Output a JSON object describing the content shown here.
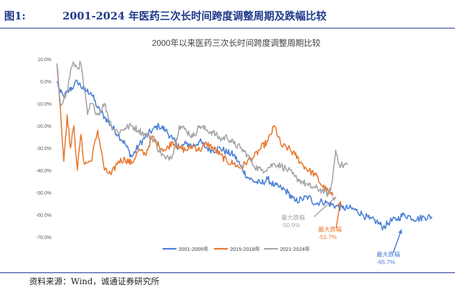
{
  "figure": {
    "label": "图1:",
    "title": "2001-2024 年医药三次长时间跨度调整周期及跌幅比较",
    "source": "资料来源：Wind，诚通证券研究所"
  },
  "chart_data": {
    "type": "line",
    "title": "2000年以来医药三次长时间跨度调整周期比较",
    "xlabel": "",
    "ylabel": "",
    "ylim": [
      -70,
      10
    ],
    "yticks": [
      "10.0%",
      "0.0%",
      "-10.0%",
      "-20.0%",
      "-30.0%",
      "-40.0%",
      "-50.0%",
      "-60.0%",
      "-70.0%"
    ],
    "gridlines": false,
    "legend_position": "bottom",
    "series": [
      {
        "name": "2001-2005年",
        "color": "#4a7fd4",
        "x": [
          0,
          5,
          10,
          18,
          25,
          30,
          40,
          50,
          60,
          70,
          80,
          90,
          100,
          110,
          120,
          130,
          140,
          150,
          160,
          170,
          180,
          190,
          200,
          210,
          220,
          230,
          240,
          250,
          260,
          270,
          280,
          290,
          300,
          310,
          320,
          330,
          340,
          350,
          360,
          370,
          380,
          390,
          400,
          410,
          420,
          430,
          440,
          450,
          460,
          470,
          480,
          490,
          500,
          510,
          520,
          530,
          540,
          552
        ],
        "values": [
          0,
          -5,
          -7,
          -4,
          -2,
          0,
          -4,
          -5,
          -12,
          -16,
          -20,
          -24,
          -28,
          -34,
          -29,
          -25,
          -22,
          -20,
          -22,
          -26,
          -30,
          -28,
          -29,
          -27,
          -30,
          -31,
          -30,
          -32,
          -33,
          -38,
          -43,
          -45,
          -46,
          -44,
          -47,
          -48,
          -50,
          -54,
          -53,
          -52,
          -55,
          -54,
          -55,
          -56,
          -57,
          -57,
          -58,
          -60,
          -62,
          -63,
          -65.7,
          -63,
          -62,
          -60,
          -61,
          -62,
          -61,
          -61
        ]
      },
      {
        "name": "2015-2018年",
        "color": "#e8772e",
        "x": [
          0,
          5,
          10,
          15,
          20,
          25,
          30,
          35,
          40,
          50,
          60,
          70,
          80,
          90,
          100,
          110,
          120,
          130,
          140,
          150,
          160,
          170,
          180,
          190,
          200,
          210,
          220,
          230,
          240,
          250,
          260,
          270,
          280,
          290,
          300,
          310,
          320,
          330,
          340,
          350,
          360,
          370,
          380,
          390,
          400,
          406
        ],
        "values": [
          8,
          -12,
          -36,
          -15,
          -30,
          -20,
          -40,
          -24,
          -37,
          -36,
          -22,
          -40,
          -42,
          -36,
          -35,
          -37,
          -31,
          -33,
          -25,
          -29,
          -31,
          -27,
          -30,
          -31,
          -29,
          -31,
          -28,
          -30,
          -33,
          -36,
          -37,
          -39,
          -36,
          -34,
          -30,
          -27,
          -20,
          -29,
          -30,
          -33,
          -37,
          -40,
          -42,
          -47,
          -50,
          -51.7
        ]
      },
      {
        "name": "2021-2024年",
        "color": "#a5a5a5",
        "x": [
          0,
          5,
          10,
          15,
          20,
          25,
          30,
          35,
          40,
          45,
          50,
          55,
          60,
          70,
          80,
          90,
          100,
          110,
          120,
          130,
          140,
          150,
          160,
          170,
          180,
          190,
          200,
          210,
          220,
          230,
          240,
          250,
          260,
          270,
          280,
          290,
          300,
          310,
          320,
          330,
          340,
          350,
          360,
          370,
          380,
          390,
          400,
          405,
          410,
          415,
          420,
          428
        ],
        "values": [
          8,
          -10,
          -8,
          -5,
          5,
          8,
          6,
          8,
          -3,
          -15,
          -10,
          -12,
          -15,
          -10,
          -20,
          -23,
          -21,
          -20,
          -22,
          -24,
          -25,
          -31,
          -35,
          -33,
          -20,
          -22,
          -25,
          -20,
          -22,
          -23,
          -26,
          -25,
          -28,
          -30,
          -33,
          -38,
          -40,
          -39,
          -37,
          -38,
          -40,
          -43,
          -45,
          -47,
          -48,
          -49,
          -50.9,
          -45,
          -31,
          -37,
          -38,
          -37
        ]
      }
    ],
    "annotations": [
      {
        "label": "最大跌幅",
        "value": "-50.9%",
        "series": "2021-2024年"
      },
      {
        "label": "最大跌幅",
        "value": "-51.7%",
        "series": "2015-2018年"
      },
      {
        "label": "最大跌幅",
        "value": "-65.7%",
        "series": "2001-2005年"
      }
    ]
  }
}
